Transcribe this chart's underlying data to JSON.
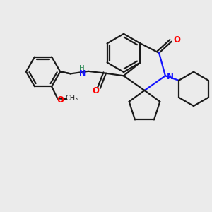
{
  "bg_color": "#ebebeb",
  "bond_color": "#1a1a1a",
  "N_color": "#1414ff",
  "O_color": "#ff0000",
  "NH_color": "#2e8b57",
  "lw": 1.6,
  "xlim": [
    0,
    10
  ],
  "ylim": [
    0,
    10
  ],
  "figsize": [
    3.0,
    3.0
  ],
  "dpi": 100
}
